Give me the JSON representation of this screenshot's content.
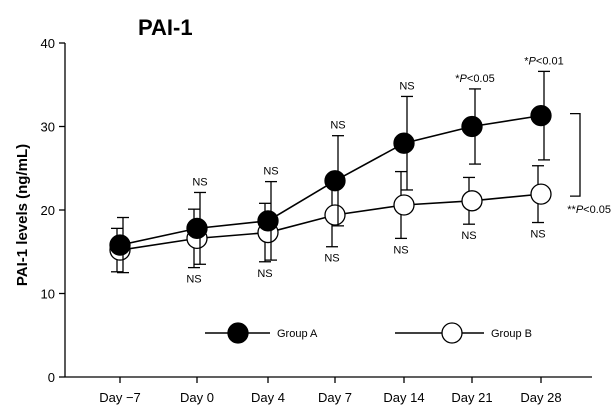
{
  "chart_data": {
    "type": "line",
    "title": "PAI-1",
    "xlabel": "",
    "ylabel": "PAI-1 levels (ng/mL)",
    "ylim": [
      0,
      40
    ],
    "yticks": [
      "0",
      "10",
      "20",
      "30",
      "40"
    ],
    "categories": [
      "Day −7",
      "Day 0",
      "Day 4",
      "Day 7",
      "Day 14",
      "Day 21",
      "Day 28"
    ],
    "series": [
      {
        "name": "Group A",
        "marker": "filled-circle",
        "color": "#000000",
        "values": [
          15.8,
          17.8,
          18.7,
          23.5,
          28.0,
          30.0,
          31.3
        ],
        "err": [
          3.3,
          4.3,
          4.7,
          5.4,
          5.6,
          4.5,
          5.3
        ]
      },
      {
        "name": "Group B",
        "marker": "open-circle",
        "color": "#000000",
        "values": [
          15.2,
          16.6,
          17.3,
          19.4,
          20.6,
          21.1,
          21.9
        ],
        "err": [
          2.6,
          3.5,
          3.5,
          3.8,
          4.0,
          2.8,
          3.4
        ]
      }
    ],
    "annotations": {
      "upper": [
        "NS",
        "NS",
        "NS",
        "NS",
        "*P<0.05",
        "*P<0.01"
      ],
      "upper_pre": [
        "",
        "",
        "",
        "",
        "*",
        "*"
      ],
      "upper_p": [
        "",
        "",
        "",
        "",
        "P",
        "P"
      ],
      "upper_val": [
        "NS",
        "NS",
        "NS",
        "NS",
        "<0.05",
        "<0.01"
      ],
      "lower": [
        "NS",
        "NS",
        "NS",
        "NS",
        "NS",
        "NS"
      ],
      "bracket_pre": "**",
      "bracket_p": "P",
      "bracket_val": "<0.05"
    },
    "legend_position": "bottom-center",
    "grid": false
  }
}
